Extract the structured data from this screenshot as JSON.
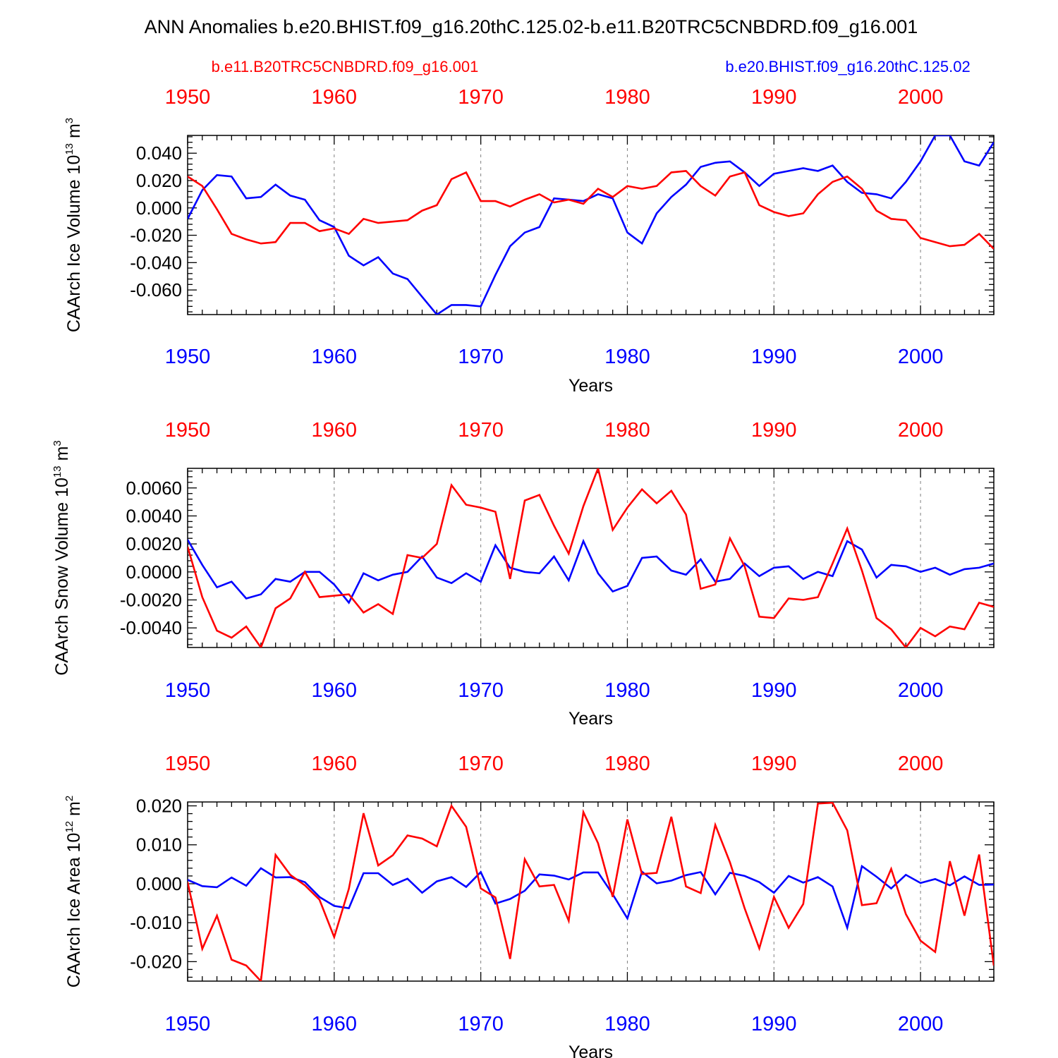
{
  "figure": {
    "title": "ANN Anomalies b.e20.BHIST.f09_g16.20thC.125.02-b.e11.B20TRC5CNBDRD.f09_g16.001",
    "legend_red": "b.e11.B20TRC5CNBDRD.f09_g16.001",
    "legend_blue": "b.e20.BHIST.f09_g16.20thC.125.02",
    "colors": {
      "red": "#ff0000",
      "blue": "#0000ff",
      "axis": "#000000",
      "grid": "#808080"
    }
  },
  "chart_data": [
    {
      "type": "line",
      "ylabel_main": "CAArch Ice Volume 10",
      "ylabel_exp": "13",
      "ylabel_unit": " m",
      "ylabel_unit_exp": "3",
      "xlabel": "Years",
      "xlim": [
        1950,
        2005
      ],
      "ylim": [
        -0.078,
        0.053
      ],
      "yticks": [
        -0.06,
        -0.04,
        -0.02,
        0.0,
        0.02,
        0.04
      ],
      "ytick_labels": [
        "-0.060",
        "-0.040",
        "-0.020",
        "0.000",
        "0.020",
        "0.040"
      ],
      "xticks": [
        1950,
        1960,
        1970,
        1980,
        1990,
        2000
      ],
      "xtick_labels": [
        "1950",
        "1960",
        "1970",
        "1980",
        "1990",
        "2000"
      ],
      "grid": "vertical dashed at decades",
      "x": [
        1950,
        1951,
        1952,
        1953,
        1954,
        1955,
        1956,
        1957,
        1958,
        1959,
        1960,
        1961,
        1962,
        1963,
        1964,
        1965,
        1966,
        1967,
        1968,
        1969,
        1970,
        1971,
        1972,
        1973,
        1974,
        1975,
        1976,
        1977,
        1978,
        1979,
        1980,
        1981,
        1982,
        1983,
        1984,
        1985,
        1986,
        1987,
        1988,
        1989,
        1990,
        1991,
        1992,
        1993,
        1994,
        1995,
        1996,
        1997,
        1998,
        1999,
        2000,
        2001,
        2002,
        2003,
        2004,
        2005
      ],
      "series": [
        {
          "color": "#0000ff",
          "values": [
            -0.008,
            0.013,
            0.024,
            0.023,
            0.007,
            0.008,
            0.017,
            0.009,
            0.006,
            -0.009,
            -0.014,
            -0.035,
            -0.042,
            -0.036,
            -0.048,
            -0.052,
            -0.065,
            -0.078,
            -0.071,
            -0.071,
            -0.072,
            -0.049,
            -0.028,
            -0.018,
            -0.014,
            0.007,
            0.006,
            0.005,
            0.01,
            0.007,
            -0.018,
            -0.026,
            -0.004,
            0.008,
            0.017,
            0.03,
            0.033,
            0.034,
            0.026,
            0.016,
            0.025,
            0.027,
            0.029,
            0.027,
            0.031,
            0.019,
            0.011,
            0.01,
            0.007,
            0.019,
            0.034,
            0.053,
            0.053,
            0.034,
            0.031,
            0.048
          ]
        },
        {
          "color": "#ff0000",
          "values": [
            0.023,
            0.016,
            -0.001,
            -0.019,
            -0.023,
            -0.026,
            -0.025,
            -0.011,
            -0.011,
            -0.017,
            -0.015,
            -0.019,
            -0.008,
            -0.011,
            -0.01,
            -0.009,
            -0.002,
            0.002,
            0.021,
            0.026,
            0.005,
            0.005,
            0.001,
            0.006,
            0.01,
            0.004,
            0.006,
            0.003,
            0.014,
            0.008,
            0.016,
            0.014,
            0.016,
            0.026,
            0.027,
            0.016,
            0.009,
            0.023,
            0.026,
            0.002,
            -0.003,
            -0.006,
            -0.004,
            0.01,
            0.019,
            0.023,
            0.014,
            -0.002,
            -0.008,
            -0.009,
            -0.022,
            -0.025,
            -0.028,
            -0.027,
            -0.019,
            -0.03
          ]
        }
      ]
    },
    {
      "type": "line",
      "ylabel_main": "CAArch Snow Volume 10",
      "ylabel_exp": "13",
      "ylabel_unit": " m",
      "ylabel_unit_exp": "3",
      "xlabel": "Years",
      "xlim": [
        1950,
        2005
      ],
      "ylim": [
        -0.0054,
        0.0074
      ],
      "yticks": [
        -0.004,
        -0.002,
        0.0,
        0.002,
        0.004,
        0.006
      ],
      "ytick_labels": [
        "-0.0040",
        "-0.0020",
        "0.0000",
        "0.0020",
        "0.0040",
        "0.0060"
      ],
      "xticks": [
        1950,
        1960,
        1970,
        1980,
        1990,
        2000
      ],
      "xtick_labels": [
        "1950",
        "1960",
        "1970",
        "1980",
        "1990",
        "2000"
      ],
      "grid": "vertical dashed at decades",
      "x": [
        1950,
        1951,
        1952,
        1953,
        1954,
        1955,
        1956,
        1957,
        1958,
        1959,
        1960,
        1961,
        1962,
        1963,
        1964,
        1965,
        1966,
        1967,
        1968,
        1969,
        1970,
        1971,
        1972,
        1973,
        1974,
        1975,
        1976,
        1977,
        1978,
        1979,
        1980,
        1981,
        1982,
        1983,
        1984,
        1985,
        1986,
        1987,
        1988,
        1989,
        1990,
        1991,
        1992,
        1993,
        1994,
        1995,
        1996,
        1997,
        1998,
        1999,
        2000,
        2001,
        2002,
        2003,
        2004,
        2005
      ],
      "series": [
        {
          "color": "#0000ff",
          "values": [
            0.0023,
            0.0005,
            -0.0011,
            -0.0007,
            -0.0019,
            -0.0016,
            -0.0005,
            -0.0007,
            0.0,
            0.0,
            -0.0009,
            -0.0022,
            -0.0001,
            -0.0006,
            -0.0002,
            0.0,
            0.0011,
            -0.0004,
            -0.0008,
            -0.0001,
            -0.0007,
            0.0019,
            0.0003,
            0.0,
            -0.0001,
            0.0011,
            -0.0006,
            0.0022,
            -0.0001,
            -0.0014,
            -0.001,
            0.001,
            0.0011,
            0.0001,
            -0.0002,
            0.0009,
            -0.0007,
            -0.0005,
            0.0006,
            -0.0003,
            0.0003,
            0.0004,
            -0.0005,
            0.0,
            -0.0003,
            0.0022,
            0.0016,
            -0.0004,
            0.0005,
            0.0004,
            0.0,
            0.0003,
            -0.0002,
            0.0002,
            0.0003,
            0.0006
          ]
        },
        {
          "color": "#ff0000",
          "values": [
            0.0018,
            -0.0018,
            -0.0042,
            -0.0047,
            -0.0039,
            -0.0054,
            -0.0026,
            -0.0019,
            0.0,
            -0.0018,
            -0.0017,
            -0.0016,
            -0.0029,
            -0.0023,
            -0.003,
            0.0012,
            0.001,
            0.002,
            0.0062,
            0.0048,
            0.0046,
            0.0043,
            -0.0005,
            0.0051,
            0.0055,
            0.0033,
            0.0013,
            0.0047,
            0.0074,
            0.003,
            0.0046,
            0.0059,
            0.0049,
            0.0058,
            0.0041,
            -0.0012,
            -0.0009,
            0.0024,
            0.0004,
            -0.0032,
            -0.0033,
            -0.0019,
            -0.002,
            -0.0018,
            0.0006,
            0.0031,
            0.0001,
            -0.0033,
            -0.0041,
            -0.0054,
            -0.004,
            -0.0046,
            -0.0039,
            -0.0041,
            -0.0022,
            -0.0025
          ]
        }
      ]
    },
    {
      "type": "line",
      "ylabel_main": "CAArch Ice Area 10",
      "ylabel_exp": "12",
      "ylabel_unit": " m",
      "ylabel_unit_exp": "2",
      "xlabel": "Years",
      "xlim": [
        1950,
        2005
      ],
      "ylim": [
        -0.025,
        0.021
      ],
      "yticks": [
        -0.02,
        -0.01,
        0.0,
        0.01,
        0.02
      ],
      "ytick_labels": [
        "-0.020",
        "-0.010",
        "0.000",
        "0.010",
        "0.020"
      ],
      "xticks": [
        1950,
        1960,
        1970,
        1980,
        1990,
        2000
      ],
      "xtick_labels": [
        "1950",
        "1960",
        "1970",
        "1980",
        "1990",
        "2000"
      ],
      "grid": "vertical dashed at decades",
      "x": [
        1950,
        1951,
        1952,
        1953,
        1954,
        1955,
        1956,
        1957,
        1958,
        1959,
        1960,
        1961,
        1962,
        1963,
        1964,
        1965,
        1966,
        1967,
        1968,
        1969,
        1970,
        1971,
        1972,
        1973,
        1974,
        1975,
        1976,
        1977,
        1978,
        1979,
        1980,
        1981,
        1982,
        1983,
        1984,
        1985,
        1986,
        1987,
        1988,
        1989,
        1990,
        1991,
        1992,
        1993,
        1994,
        1995,
        1996,
        1997,
        1998,
        1999,
        2000,
        2001,
        2002,
        2003,
        2004,
        2005
      ],
      "series": [
        {
          "color": "#0000ff",
          "values": [
            0.001,
            -0.0006,
            -0.0009,
            0.0016,
            -0.0005,
            0.004,
            0.0016,
            0.0017,
            0.0004,
            -0.0034,
            -0.0057,
            -0.0063,
            0.0027,
            0.0027,
            -0.0003,
            0.0013,
            -0.0023,
            0.0006,
            0.0017,
            -0.0008,
            0.003,
            -0.0051,
            -0.0039,
            -0.0018,
            0.0024,
            0.0021,
            0.0011,
            0.0029,
            0.0029,
            -0.0027,
            -0.0089,
            0.0031,
            0.0001,
            0.0008,
            0.0022,
            0.003,
            -0.0027,
            0.0028,
            0.002,
            0.0004,
            -0.0023,
            0.002,
            0.0003,
            0.0017,
            -0.0007,
            -0.0113,
            0.0045,
            0.0018,
            -0.0012,
            0.0023,
            0.0002,
            0.0012,
            -0.0004,
            0.0019,
            -0.0003,
            -0.0002
          ]
        },
        {
          "color": "#ff0000",
          "values": [
            0.0004,
            -0.0167,
            -0.0082,
            -0.0195,
            -0.021,
            -0.025,
            0.0074,
            0.0023,
            -0.0004,
            -0.0041,
            -0.0137,
            -0.0013,
            0.0181,
            0.0047,
            0.0073,
            0.0124,
            0.0116,
            0.0096,
            0.02,
            0.0146,
            -0.0012,
            -0.0035,
            -0.0193,
            0.0063,
            -0.0007,
            -0.0003,
            -0.0095,
            0.0184,
            0.0104,
            -0.0034,
            0.0165,
            0.0025,
            0.0028,
            0.0172,
            -0.0007,
            -0.0024,
            0.0151,
            0.0055,
            -0.0063,
            -0.0166,
            -0.0034,
            -0.0113,
            -0.0052,
            0.0206,
            0.0208,
            0.0137,
            -0.0055,
            -0.005,
            0.0038,
            -0.0078,
            -0.0146,
            -0.0175,
            0.0058,
            -0.0082,
            0.0075,
            -0.021
          ]
        }
      ]
    }
  ]
}
